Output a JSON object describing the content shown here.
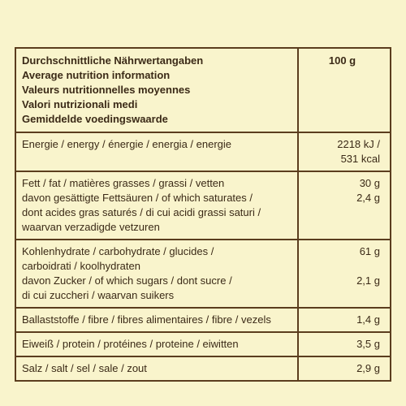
{
  "table": {
    "header": {
      "labels": [
        "Durchschnittliche Nährwertangaben",
        "Average nutrition information",
        "Valeurs nutritionnelles moyennes",
        "Valori nutrizionali medi",
        "Gemiddelde voedingswaarde"
      ],
      "value": "100 g"
    },
    "rows": [
      {
        "items": [
          {
            "label": [
              "Energie / energy / énergie / energia / energie"
            ],
            "value": [
              "2218 kJ /",
              "531 kcal"
            ]
          }
        ]
      },
      {
        "items": [
          {
            "label": [
              "Fett / fat / matières grasses / grassi / vetten"
            ],
            "value": [
              "30 g"
            ]
          },
          {
            "label": [
              "davon gesättigte Fettsäuren / of which saturates /",
              "dont acides gras saturés / di cui acidi grassi saturi /",
              "waarvan verzadigde vetzuren"
            ],
            "value": [
              "2,4 g"
            ]
          }
        ]
      },
      {
        "items": [
          {
            "label": [
              "Kohlenhydrate / carbohydrate / glucides /",
              "carboidrati / koolhydraten"
            ],
            "value": [
              "61 g"
            ]
          },
          {
            "label": [
              "davon Zucker / of which sugars / dont sucre /",
              "di cui zuccheri / waarvan suikers"
            ],
            "value": [
              "2,1 g"
            ]
          }
        ]
      },
      {
        "items": [
          {
            "label": [
              "Ballaststoffe / fibre / fibres alimentaires / fibre / vezels"
            ],
            "value": [
              "1,4 g"
            ]
          }
        ]
      },
      {
        "items": [
          {
            "label": [
              "Eiweiß / protein / protéines / proteine / eiwitten"
            ],
            "value": [
              "3,5 g"
            ]
          }
        ]
      },
      {
        "items": [
          {
            "label": [
              "Salz / salt / sel / sale / zout"
            ],
            "value": [
              "2,9 g"
            ]
          }
        ]
      }
    ]
  }
}
